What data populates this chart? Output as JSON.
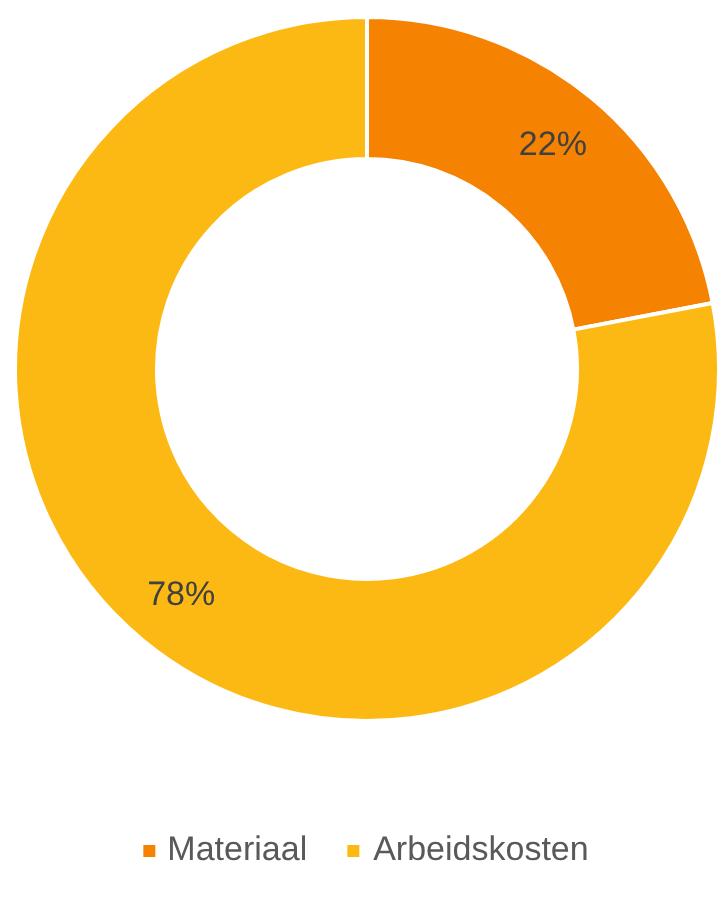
{
  "chart_data": {
    "type": "donut",
    "categories": [
      "Materiaal",
      "Arbeidskosten"
    ],
    "values": [
      22,
      78
    ],
    "colors": [
      "#f58200",
      "#fdb913"
    ],
    "value_labels": [
      "22%",
      "78%"
    ],
    "legend": "bottom"
  }
}
